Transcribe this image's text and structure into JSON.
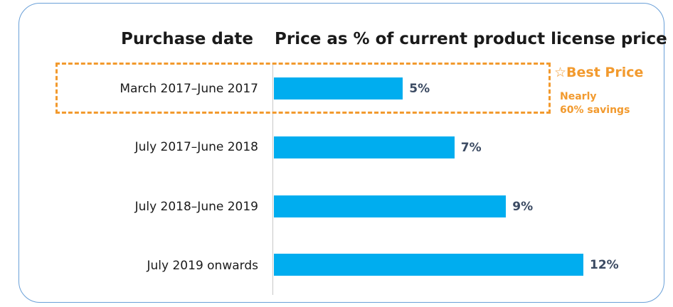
{
  "headers": {
    "left": "Purchase date",
    "right": "Price as % of current product license price"
  },
  "badge": {
    "star": "☆",
    "title": "Best Price",
    "line1": "Nearly",
    "line2": "60% savings"
  },
  "colors": {
    "bar": "#00adef",
    "accent": "#f29a2e",
    "value_text": "#3b4a62",
    "border": "#6aa0d8"
  },
  "chart_data": {
    "type": "bar",
    "orientation": "horizontal",
    "categories": [
      "March 2017–June 2017",
      "July 2017–June 2018",
      "July 2018–June 2019",
      "July 2019 onwards"
    ],
    "values": [
      5,
      7,
      9,
      12
    ],
    "value_labels": [
      "5%",
      "7%",
      "9%",
      "12%"
    ],
    "xlabel": "Price as % of current product license price",
    "ylabel": "Purchase date",
    "xlim": [
      0,
      12
    ],
    "grid": false,
    "highlight_index": 0
  }
}
